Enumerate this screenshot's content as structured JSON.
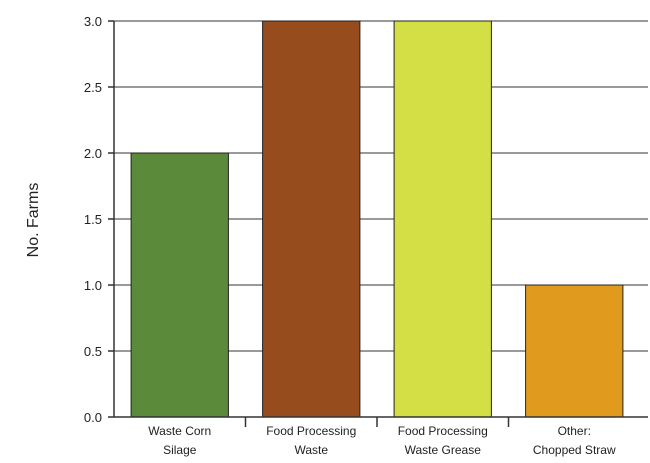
{
  "chart_data": {
    "type": "bar",
    "title": "",
    "xlabel": "",
    "ylabel": "No. Farms",
    "ylim": [
      0,
      3.0
    ],
    "yticks": [
      "0.0",
      "0.5",
      "1.0",
      "1.5",
      "2.0",
      "2.5",
      "3.0"
    ],
    "grid": true,
    "categories": [
      [
        "Waste Corn",
        "Silage"
      ],
      [
        "Food Processing",
        "Waste"
      ],
      [
        "Food Processing",
        "Waste Grease"
      ],
      [
        "Other:",
        "Chopped Straw"
      ]
    ],
    "values": [
      2,
      3,
      3,
      1
    ],
    "colors": [
      "#5a8a3a",
      "#964c1c",
      "#d4df45",
      "#e09a1e"
    ]
  }
}
